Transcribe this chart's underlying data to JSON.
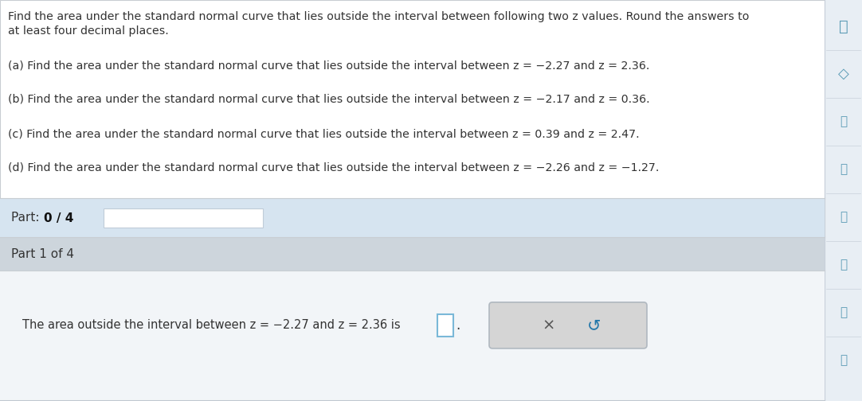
{
  "bg_color": "#ffffff",
  "main_text_color": "#333333",
  "header_line1": "Find the area under the standard normal curve that lies outside the interval between following two z values. Round the answers to",
  "header_line2": "at least four decimal places.",
  "parts": [
    "(a) Find the area under the standard normal curve that lies outside the interval between z = −2.27 and z = 2.36.",
    "(b) Find the area under the standard normal curve that lies outside the interval between z = −2.17 and z = 0.36.",
    "(c) Find the area under the standard normal curve that lies outside the interval between z = 0.39 and z = 2.47.",
    "(d) Find the area under the standard normal curve that lies outside the interval between z = −2.26 and z = −1.27."
  ],
  "progress_bg": "#d6e4f0",
  "progress_bar_fill": "#f5f8fa",
  "progress_text_normal": "Part: ",
  "progress_text_bold": "0 / 4",
  "part_label_bg": "#cdd5dc",
  "part_label_text": "Part 1 of 4",
  "answer_bg": "#f2f5f8",
  "answer_text": "The area outside the interval between z = −2.27 and z = 2.36 is",
  "input_border": "#7ab8d8",
  "button_bg": "#d5d5d5",
  "button_border": "#b0b8c0",
  "sidebar_bg": "#e8eef4",
  "sidebar_line": "#c8d0da",
  "content_border": "#c8cdd2",
  "x_color": "#555555",
  "refresh_color": "#3377aa",
  "bottom_border": "#c0c8d0"
}
